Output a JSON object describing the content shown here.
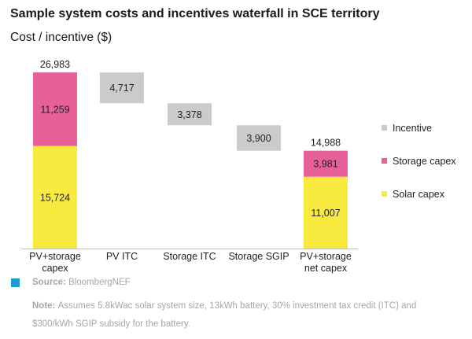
{
  "title": "Sample system costs and incentives waterfall in SCE territory",
  "subtitle": "Cost / incentive ($)",
  "colors": {
    "solar_capex": "#f9ea3f",
    "storage_capex": "#e8609a",
    "incentive": "#cbcbcb",
    "axis": "#bbbbbb",
    "source_marker": "#1b9fcf"
  },
  "chart_data": {
    "type": "bar",
    "subtype": "waterfall",
    "categories": [
      "PV+storage capex",
      "PV ITC",
      "Storage ITC",
      "Storage SGIP",
      "PV+storage net capex"
    ],
    "category_lines": [
      [
        "PV+storage",
        "capex"
      ],
      [
        "PV ITC"
      ],
      [
        "Storage ITC"
      ],
      [
        "Storage SGIP"
      ],
      [
        "PV+storage",
        "net capex"
      ]
    ],
    "series": [
      {
        "name": "Solar capex",
        "color_key": "solar_capex",
        "values": [
          15724,
          null,
          null,
          null,
          11007
        ]
      },
      {
        "name": "Storage capex",
        "color_key": "storage_capex",
        "values": [
          11259,
          null,
          null,
          null,
          3981
        ]
      },
      {
        "name": "Incentive",
        "color_key": "incentive",
        "values": [
          null,
          4717,
          3378,
          3900,
          null
        ]
      }
    ],
    "totals": [
      26983,
      null,
      null,
      null,
      14988
    ],
    "total_labels": [
      "26,983",
      null,
      null,
      null,
      "14,988"
    ],
    "segment_labels": {
      "Solar capex": [
        "15,724",
        null,
        null,
        null,
        "11,007"
      ],
      "Storage capex": [
        "11,259",
        null,
        null,
        null,
        "3,981"
      ],
      "Incentive": [
        null,
        "4,717",
        "3,378",
        "3,900",
        null
      ]
    },
    "ylim": [
      0,
      27000
    ],
    "grid": false,
    "legend_position": "right",
    "legend": [
      "Incentive",
      "Storage capex",
      "Solar capex"
    ]
  },
  "legend": [
    {
      "label": "Incentive",
      "color_key": "incentive"
    },
    {
      "label": "Storage capex",
      "color_key": "storage_capex"
    },
    {
      "label": "Solar capex",
      "color_key": "solar_capex"
    }
  ],
  "footer": {
    "source_label": "Source:",
    "source_text": "BloombergNEF",
    "note_label": "Note:",
    "note_text": "Assumes 5.8kWac solar system size, 13kWh battery, 30% investment tax credit (ITC) and $300/kWh SGIP subsidy for the battery."
  }
}
